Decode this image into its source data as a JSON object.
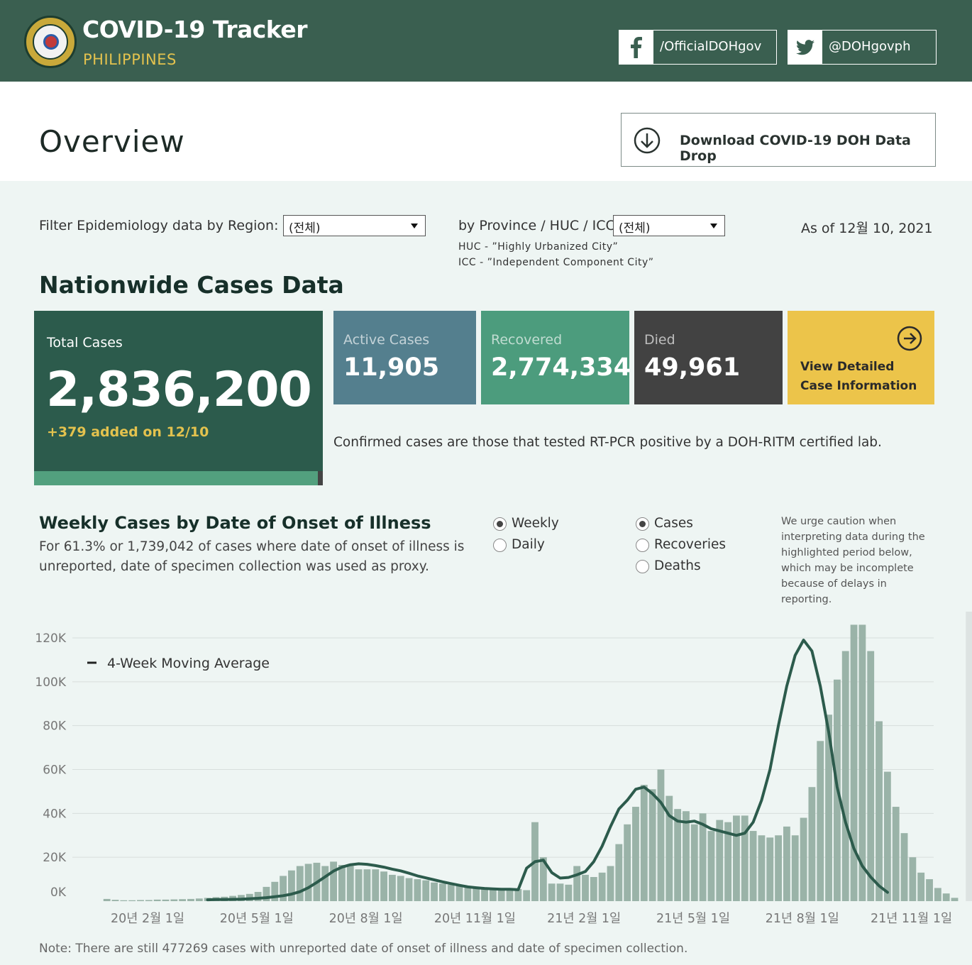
{
  "header": {
    "title": "COVID-19 Tracker",
    "subtitle": "PHILIPPINES",
    "facebook": "/OfficialDOHgov",
    "twitter": "@DOHgovph"
  },
  "overview": {
    "title": "Overview",
    "download_label": "Download COVID-19 DOH Data Drop"
  },
  "filters": {
    "region_label": "Filter Epidemiology data by Region:",
    "region_value": "(전체)",
    "province_label": "by Province / HUC / ICC:",
    "province_value": "(전체)",
    "huc_note": "HUC - ”Highly Urbanized City”",
    "icc_note": "ICC - ”Independent Component City”",
    "as_of": "As of 12월 10, 2021"
  },
  "nationwide": {
    "title": "Nationwide Cases Data",
    "total_label": "Total Cases",
    "total_value": "2,836,200",
    "added": "+379 added on 12/10",
    "active_label": "Active Cases",
    "active_value": "11,905",
    "recovered_label": "Recovered",
    "recovered_value": "2,774,334",
    "died_label": "Died",
    "died_value": "49,961",
    "view_line1": "View Detailed",
    "view_line2": "Case Information",
    "confirmed_note": "Confirmed cases are those that tested RT-PCR positive by a DOH-RITM certified lab."
  },
  "weekly": {
    "title": "Weekly Cases by Date of Onset of Illness",
    "subtitle": "For 61.3% or 1,739,042 of cases where date of onset of illness is unreported, date of specimen collection was used as proxy.",
    "period_options": [
      "Weekly",
      "Daily"
    ],
    "period_selected": "Weekly",
    "metric_options": [
      "Cases",
      "Recoveries",
      "Deaths"
    ],
    "metric_selected": "Cases",
    "caution": "We urge caution when interpreting data during the highlighted period below, which may be incomplete because of delays in reporting.",
    "footnote": "Note: There are still 477269 cases with unreported date of onset of illness and date of specimen collection."
  },
  "colors": {
    "header_bg": "#3a5f50",
    "accent_yellow": "#e3c24e",
    "bar": "#9ab3a8",
    "moving_avg": "#2c5b4c",
    "highlight": "#dde3e2"
  },
  "chart_data": {
    "type": "bar",
    "title": "",
    "xlabel": "",
    "ylabel": "",
    "ylim": [
      0,
      125000
    ],
    "yticks": [
      0,
      20000,
      40000,
      60000,
      80000,
      100000,
      120000
    ],
    "ytick_labels": [
      "0K",
      "20K",
      "40K",
      "60K",
      "80K",
      "100K",
      "120K"
    ],
    "xtick_labels": [
      "20년 2월 1일",
      "20년 5월 1일",
      "20년 8월 1일",
      "20년 11월 1일",
      "21년 2월 1일",
      "21년 5월 1일",
      "21년 8월 1일",
      "21년 11월 1일"
    ],
    "xtick_weeks": [
      0,
      13,
      26,
      39,
      52,
      65,
      78,
      91
    ],
    "legend": [
      "4-Week Moving Average"
    ],
    "legend_position": "top-left",
    "highlight_weeks": [
      99,
      100
    ],
    "series": [
      {
        "type": "bar",
        "values": [
          1000,
          600,
          400,
          400,
          500,
          500,
          700,
          700,
          800,
          900,
          1000,
          1200,
          1500,
          1800,
          2000,
          2400,
          2800,
          3300,
          4200,
          6500,
          8800,
          11500,
          14000,
          16000,
          17000,
          17500,
          16000,
          18000,
          16500,
          16000,
          14500,
          14500,
          14500,
          13500,
          12000,
          11500,
          10500,
          10000,
          9500,
          8500,
          8000,
          7500,
          7000,
          6500,
          6000,
          6000,
          5500,
          5500,
          5500,
          5500,
          5000,
          36000,
          20000,
          8000,
          8000,
          7500,
          16000,
          12000,
          11000,
          13000,
          16000,
          26000,
          35000,
          43000,
          53000,
          51000,
          60000,
          48000,
          42000,
          41000,
          35000,
          40000,
          32000,
          37000,
          36000,
          39000,
          39000,
          32000,
          30000,
          29000,
          30000,
          34000,
          30000,
          38000,
          52000,
          73000,
          85000,
          101000,
          114000,
          126000,
          126000,
          114000,
          82000,
          59000,
          43000,
          31000,
          20000,
          13000,
          10000,
          6000,
          3500,
          1500
        ],
        "start_week": -4
      },
      {
        "name": "4-Week Moving Average",
        "type": "line",
        "values": [
          600,
          700,
          700,
          800,
          900,
          1100,
          1300,
          1600,
          2000,
          2500,
          3200,
          4300,
          6100,
          8500,
          11100,
          13700,
          15500,
          16600,
          17000,
          16800,
          16200,
          15500,
          14600,
          13800,
          12700,
          11500,
          10600,
          9700,
          8800,
          8000,
          7200,
          6500,
          6100,
          5800,
          5600,
          5400,
          5400,
          5200,
          15000,
          18000,
          18700,
          13000,
          10500,
          10800,
          12000,
          13500,
          18000,
          25000,
          34000,
          42000,
          46000,
          51000,
          52000,
          49000,
          45000,
          39000,
          36500,
          36000,
          36500,
          35000,
          33000,
          32000,
          31000,
          30000,
          31000,
          36000,
          46000,
          60000,
          80000,
          98000,
          112000,
          119000,
          114000,
          98000,
          77000,
          52000,
          36000,
          24000,
          16000,
          11000,
          7000,
          4000
        ],
        "start_week": 8
      }
    ]
  }
}
